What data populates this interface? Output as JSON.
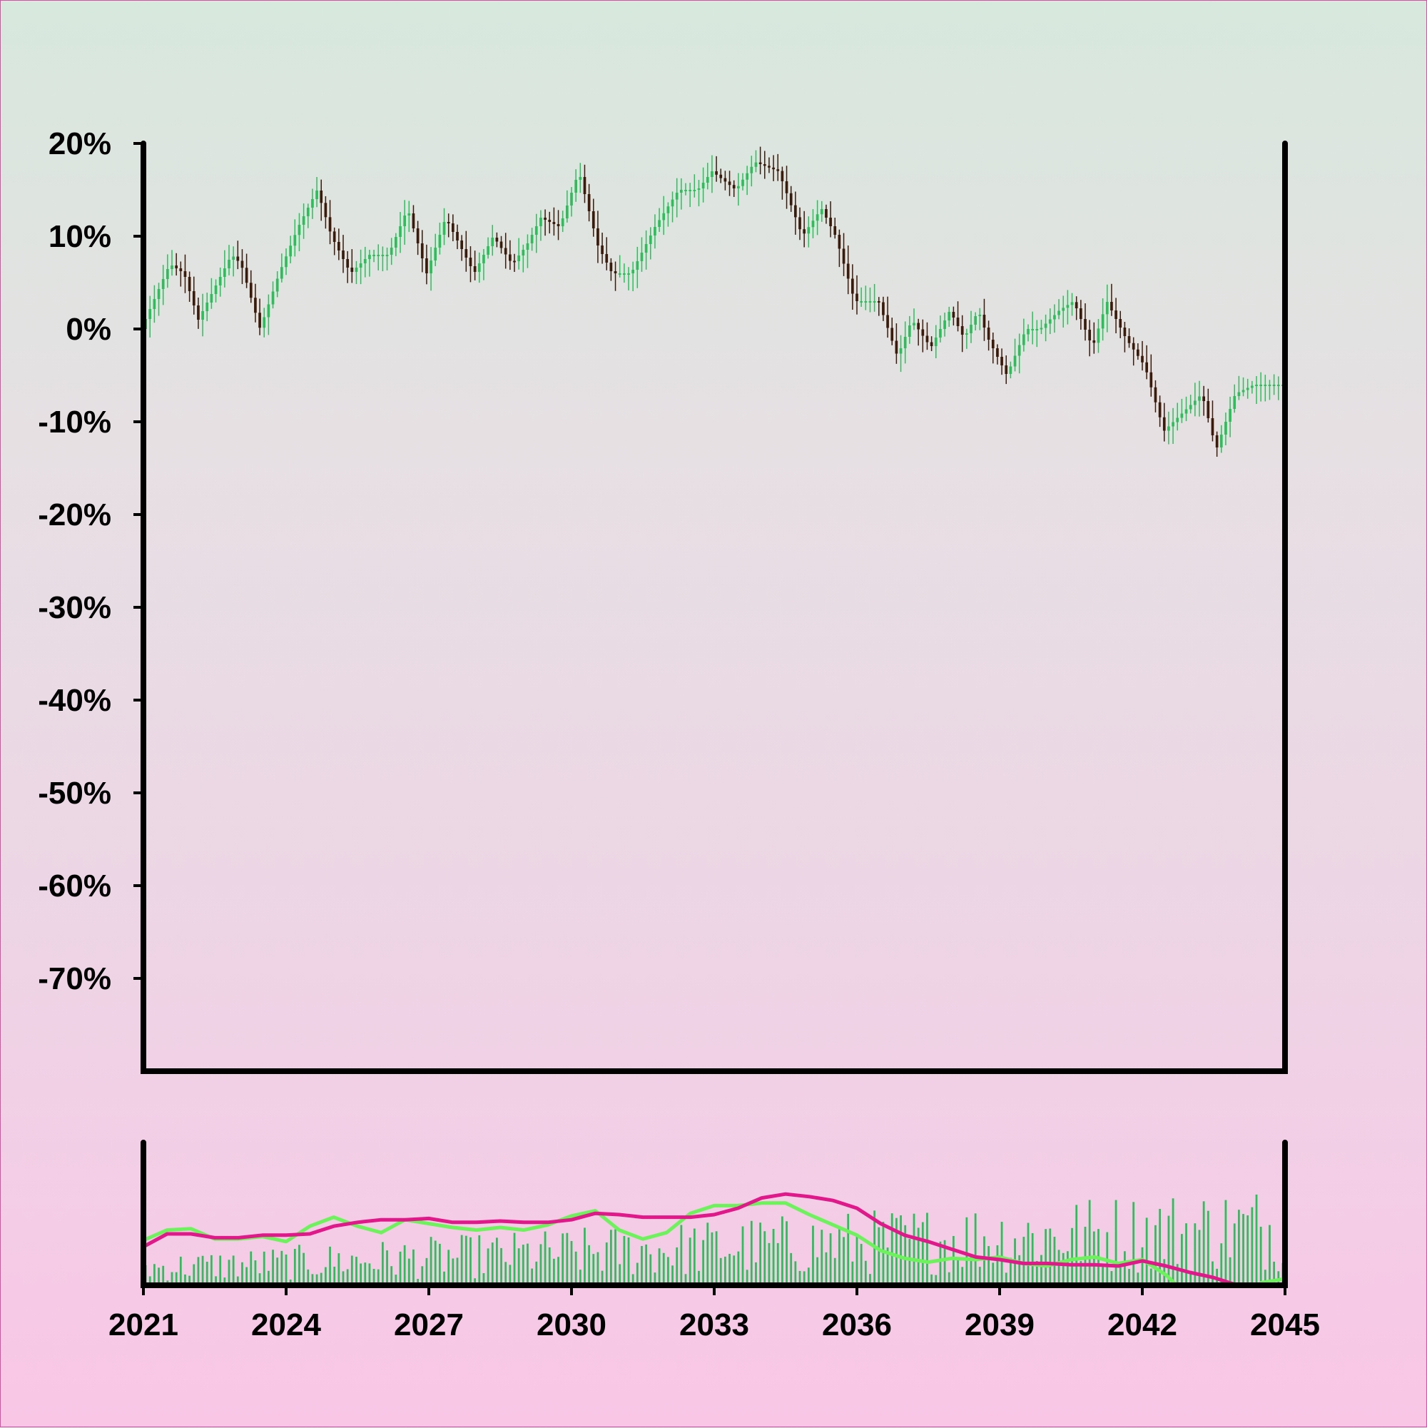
{
  "chart_data": {
    "type": "candlestick",
    "title": "",
    "xlabel": "",
    "ylabel": "",
    "x_range": [
      2021,
      2045
    ],
    "x_ticks": [
      2021,
      2024,
      2027,
      2030,
      2033,
      2036,
      2039,
      2042,
      2045
    ],
    "x_tick_labels": [
      "2021",
      "2024",
      "2027",
      "2030",
      "2033",
      "2036",
      "2039",
      "2042",
      "2045"
    ],
    "y_range": [
      -80,
      20
    ],
    "y_ticks": [
      20,
      10,
      0,
      -10,
      -20,
      -30,
      -40,
      -50,
      -60,
      -70
    ],
    "y_tick_labels": [
      "20%",
      "10%",
      "0%",
      "-10%",
      "-20%",
      "-30%",
      "-40%",
      "-50%",
      "-60%",
      "-70%"
    ],
    "grid": false,
    "price_path": [
      [
        2021.0,
        0
      ],
      [
        2021.6,
        7
      ],
      [
        2021.9,
        6
      ],
      [
        2022.2,
        1
      ],
      [
        2022.5,
        4
      ],
      [
        2022.9,
        8
      ],
      [
        2023.1,
        7
      ],
      [
        2023.5,
        0
      ],
      [
        2023.9,
        6
      ],
      [
        2024.3,
        11
      ],
      [
        2024.7,
        15
      ],
      [
        2025.0,
        10
      ],
      [
        2025.4,
        6
      ],
      [
        2025.8,
        8
      ],
      [
        2026.2,
        8
      ],
      [
        2026.6,
        13
      ],
      [
        2027.0,
        6
      ],
      [
        2027.4,
        12
      ],
      [
        2027.7,
        9
      ],
      [
        2028.0,
        6
      ],
      [
        2028.4,
        10
      ],
      [
        2028.8,
        7
      ],
      [
        2029.1,
        9
      ],
      [
        2029.4,
        12
      ],
      [
        2029.8,
        11
      ],
      [
        2030.2,
        17
      ],
      [
        2030.6,
        9
      ],
      [
        2030.9,
        6
      ],
      [
        2031.3,
        6
      ],
      [
        2031.8,
        11
      ],
      [
        2032.3,
        15
      ],
      [
        2032.7,
        15
      ],
      [
        2033.0,
        17
      ],
      [
        2033.5,
        15
      ],
      [
        2033.9,
        18
      ],
      [
        2034.4,
        17
      ],
      [
        2034.9,
        10
      ],
      [
        2035.3,
        13
      ],
      [
        2035.6,
        10
      ],
      [
        2036.0,
        3
      ],
      [
        2036.5,
        3
      ],
      [
        2036.9,
        -3
      ],
      [
        2037.2,
        1
      ],
      [
        2037.6,
        -2
      ],
      [
        2038.0,
        2
      ],
      [
        2038.3,
        -1
      ],
      [
        2038.6,
        2
      ],
      [
        2038.8,
        -1
      ],
      [
        2039.2,
        -5
      ],
      [
        2039.6,
        0
      ],
      [
        2039.9,
        0
      ],
      [
        2040.3,
        2
      ],
      [
        2040.6,
        3
      ],
      [
        2041.0,
        -2
      ],
      [
        2041.3,
        3
      ],
      [
        2041.7,
        -1
      ],
      [
        2042.1,
        -4
      ],
      [
        2042.5,
        -11
      ],
      [
        2042.9,
        -9
      ],
      [
        2043.3,
        -7
      ],
      [
        2043.6,
        -13
      ],
      [
        2044.0,
        -7
      ],
      [
        2044.4,
        -6
      ],
      [
        2044.7,
        -6
      ],
      [
        2045.0,
        -6
      ]
    ],
    "volume": {
      "bars": 260,
      "max_relative": 1.0
    },
    "overlay_lines": [
      {
        "color": "#6cf25a",
        "points": [
          [
            2021.0,
            0.35
          ],
          [
            2021.5,
            0.43
          ],
          [
            2022.0,
            0.44
          ],
          [
            2022.5,
            0.36
          ],
          [
            2023.0,
            0.36
          ],
          [
            2023.5,
            0.38
          ],
          [
            2024.0,
            0.34
          ],
          [
            2024.5,
            0.46
          ],
          [
            2025.0,
            0.53
          ],
          [
            2025.5,
            0.46
          ],
          [
            2026.0,
            0.41
          ],
          [
            2026.5,
            0.51
          ],
          [
            2027.0,
            0.48
          ],
          [
            2027.5,
            0.45
          ],
          [
            2028.0,
            0.43
          ],
          [
            2028.5,
            0.45
          ],
          [
            2029.0,
            0.43
          ],
          [
            2029.5,
            0.47
          ],
          [
            2030.0,
            0.54
          ],
          [
            2030.5,
            0.58
          ],
          [
            2031.0,
            0.43
          ],
          [
            2031.5,
            0.36
          ],
          [
            2032.0,
            0.41
          ],
          [
            2032.5,
            0.56
          ],
          [
            2033.0,
            0.62
          ],
          [
            2033.5,
            0.62
          ],
          [
            2034.0,
            0.64
          ],
          [
            2034.5,
            0.64
          ],
          [
            2035.0,
            0.55
          ],
          [
            2035.5,
            0.47
          ],
          [
            2036.0,
            0.39
          ],
          [
            2036.5,
            0.27
          ],
          [
            2037.0,
            0.21
          ],
          [
            2037.5,
            0.18
          ],
          [
            2038.0,
            0.21
          ],
          [
            2038.5,
            0.2
          ],
          [
            2039.0,
            0.22
          ],
          [
            2039.5,
            0.17
          ],
          [
            2040.0,
            0.15
          ],
          [
            2040.5,
            0.2
          ],
          [
            2041.0,
            0.22
          ],
          [
            2041.5,
            0.17
          ],
          [
            2042.0,
            0.2
          ],
          [
            2042.5,
            0.08
          ],
          [
            2043.0,
            -0.1
          ],
          [
            2043.5,
            -0.35
          ],
          [
            2044.0,
            -0.2
          ],
          [
            2044.5,
            0.02
          ],
          [
            2045.0,
            0.05
          ]
        ]
      },
      {
        "color": "#e0188a",
        "points": [
          [
            2021.0,
            0.3
          ],
          [
            2021.5,
            0.4
          ],
          [
            2022.0,
            0.4
          ],
          [
            2022.5,
            0.37
          ],
          [
            2023.0,
            0.37
          ],
          [
            2023.5,
            0.39
          ],
          [
            2024.0,
            0.39
          ],
          [
            2024.5,
            0.4
          ],
          [
            2025.0,
            0.46
          ],
          [
            2025.5,
            0.49
          ],
          [
            2026.0,
            0.51
          ],
          [
            2026.5,
            0.51
          ],
          [
            2027.0,
            0.52
          ],
          [
            2027.5,
            0.49
          ],
          [
            2028.0,
            0.49
          ],
          [
            2028.5,
            0.5
          ],
          [
            2029.0,
            0.49
          ],
          [
            2029.5,
            0.49
          ],
          [
            2030.0,
            0.51
          ],
          [
            2030.5,
            0.56
          ],
          [
            2031.0,
            0.55
          ],
          [
            2031.5,
            0.53
          ],
          [
            2032.0,
            0.53
          ],
          [
            2032.5,
            0.53
          ],
          [
            2033.0,
            0.55
          ],
          [
            2033.5,
            0.6
          ],
          [
            2034.0,
            0.68
          ],
          [
            2034.5,
            0.71
          ],
          [
            2035.0,
            0.69
          ],
          [
            2035.5,
            0.66
          ],
          [
            2036.0,
            0.6
          ],
          [
            2036.5,
            0.48
          ],
          [
            2037.0,
            0.39
          ],
          [
            2037.5,
            0.34
          ],
          [
            2038.0,
            0.28
          ],
          [
            2038.5,
            0.22
          ],
          [
            2039.0,
            0.2
          ],
          [
            2039.5,
            0.17
          ],
          [
            2040.0,
            0.17
          ],
          [
            2040.5,
            0.16
          ],
          [
            2041.0,
            0.16
          ],
          [
            2041.5,
            0.15
          ],
          [
            2042.0,
            0.19
          ],
          [
            2042.5,
            0.15
          ],
          [
            2043.0,
            0.1
          ],
          [
            2043.5,
            0.06
          ],
          [
            2044.0,
            0.0
          ],
          [
            2044.5,
            -0.05
          ],
          [
            2045.0,
            -0.06
          ]
        ]
      }
    ],
    "colors": {
      "up": "#2bbf5a",
      "down": "#3b1a0a",
      "volume": "#2bbf5a",
      "axis": "#000000"
    }
  }
}
